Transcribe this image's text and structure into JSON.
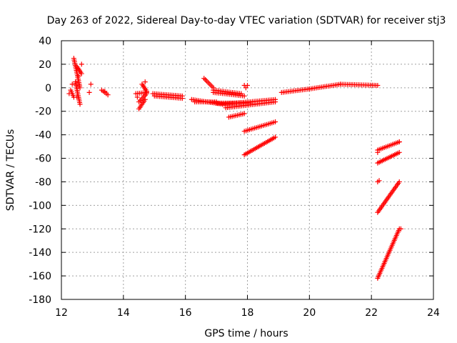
{
  "chart_data": {
    "type": "scatter",
    "title": "Day 263 of 2022, Sidereal Day-to-day VTEC variation (SDTVAR) for receiver stj3",
    "xlabel": "GPS time / hours",
    "ylabel": "SDTVAR / TECUs",
    "xlim": [
      12,
      24
    ],
    "ylim": [
      -180,
      40
    ],
    "xticks": [
      12,
      14,
      16,
      18,
      20,
      22,
      24
    ],
    "yticks": [
      -180,
      -160,
      -140,
      -120,
      -100,
      -80,
      -60,
      -40,
      -20,
      0,
      20,
      40
    ],
    "grid": true,
    "marker": "+",
    "color": "#ff0000",
    "series": [
      {
        "name": "segments",
        "type": "segments",
        "values": [
          [
            12.4,
            25,
            12.6,
            0
          ],
          [
            12.45,
            5,
            12.6,
            -14
          ],
          [
            12.5,
            18,
            12.65,
            12
          ],
          [
            12.3,
            -2,
            12.4,
            -8
          ],
          [
            13.3,
            -2,
            13.5,
            -6
          ],
          [
            14.4,
            -5,
            14.75,
            -4
          ],
          [
            14.5,
            -12,
            14.75,
            -5
          ],
          [
            14.5,
            -18,
            14.7,
            -10
          ],
          [
            14.6,
            3,
            14.75,
            -3
          ],
          [
            14.95,
            -5,
            15.9,
            -7
          ],
          [
            15.0,
            -7,
            15.9,
            -9
          ],
          [
            16.2,
            -10,
            17.2,
            -14
          ],
          [
            16.3,
            -12,
            17.0,
            -12
          ],
          [
            16.6,
            8,
            16.9,
            0
          ],
          [
            16.9,
            -2,
            17.8,
            -5
          ],
          [
            16.9,
            -4,
            17.9,
            -7
          ],
          [
            17.0,
            -13,
            18.1,
            -13
          ],
          [
            17.2,
            -14,
            18.9,
            -10
          ],
          [
            17.3,
            -17,
            18.9,
            -12
          ],
          [
            17.4,
            -25,
            17.9,
            -22
          ],
          [
            17.9,
            -37,
            18.9,
            -29
          ],
          [
            17.9,
            -57,
            18.9,
            -42
          ],
          [
            19.1,
            -4,
            20.0,
            -1
          ],
          [
            20.0,
            -1,
            21.0,
            3
          ],
          [
            21.0,
            3,
            22.2,
            2
          ],
          [
            22.2,
            -53,
            22.9,
            -46
          ],
          [
            22.2,
            -64,
            22.9,
            -55
          ],
          [
            22.2,
            -106,
            22.9,
            -80
          ],
          [
            22.2,
            -162,
            22.9,
            -120
          ]
        ]
      },
      {
        "name": "points",
        "type": "points",
        "values": [
          [
            12.35,
            3
          ],
          [
            12.65,
            20
          ],
          [
            12.25,
            -5
          ],
          [
            12.55,
            10
          ],
          [
            12.5,
            -8
          ],
          [
            12.95,
            3
          ],
          [
            12.9,
            -4
          ],
          [
            13.4,
            -3
          ],
          [
            14.45,
            -8
          ],
          [
            14.7,
            5
          ],
          [
            17.9,
            2
          ],
          [
            18.0,
            2
          ],
          [
            17.95,
            0
          ],
          [
            22.2,
            -80
          ],
          [
            22.25,
            -79
          ],
          [
            22.9,
            -46
          ],
          [
            22.95,
            -120
          ],
          [
            22.2,
            -55
          ]
        ]
      }
    ]
  }
}
